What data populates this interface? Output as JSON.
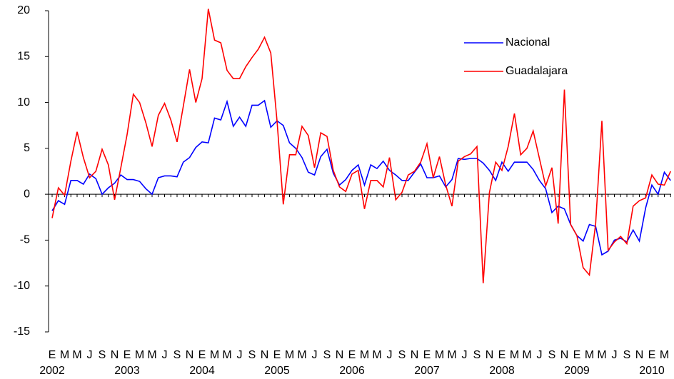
{
  "chart_data": {
    "type": "line",
    "categories": [
      "E",
      null,
      "M",
      null,
      "M",
      null,
      "J",
      null,
      "S",
      null,
      "N",
      null,
      "E",
      null,
      "M",
      null,
      "M",
      null,
      "J",
      null,
      "S",
      null,
      "N",
      null,
      "E",
      null,
      "M",
      null,
      "M",
      null,
      "J",
      null,
      "S",
      null,
      "N",
      null,
      "E",
      null,
      "M",
      null,
      "M",
      null,
      "J",
      null,
      "S",
      null,
      "N",
      null,
      "E",
      null,
      "M",
      null,
      "M",
      null,
      "J",
      null,
      "S",
      null,
      "N",
      null,
      "E",
      null,
      "M",
      null,
      "M",
      null,
      "J",
      null,
      "S",
      null,
      "N",
      null,
      "E",
      null,
      "M",
      null,
      "M",
      null,
      "J",
      null,
      "S",
      null,
      "N",
      null,
      "E",
      null,
      "M",
      null,
      "M",
      null,
      "J",
      null,
      "S",
      null,
      "N",
      null,
      "E",
      null,
      "M",
      null
    ],
    "year_labels": [
      "2002",
      "2003",
      "2004",
      "2005",
      "2006",
      "2007",
      "2008",
      "2009",
      "2010"
    ],
    "series": [
      {
        "name": "Nacional",
        "color": "#0000ff",
        "values": [
          -1.8,
          -0.7,
          -1.1,
          1.5,
          1.5,
          1.1,
          2.2,
          1.7,
          0,
          0.7,
          1.2,
          2.1,
          1.6,
          1.6,
          1.4,
          0.6,
          0,
          1.8,
          2.0,
          2.0,
          1.9,
          3.5,
          4.0,
          5.1,
          5.7,
          5.6,
          8.3,
          8.1,
          10.1,
          7.4,
          8.4,
          7.4,
          9.7,
          9.7,
          10.2,
          7.3,
          8.0,
          7.5,
          5.6,
          5.0,
          4.0,
          2.4,
          2.1,
          4.1,
          4.9,
          2.3,
          1.0,
          1.6,
          2.6,
          3.2,
          1.0,
          3.2,
          2.8,
          3.6,
          2.6,
          2.1,
          1.5,
          1.5,
          2.4,
          3.3,
          1.8,
          1.8,
          2.0,
          0.8,
          1.6,
          3.9,
          3.8,
          3.9,
          3.9,
          3.4,
          2.6,
          1.5,
          3.5,
          2.5,
          3.5,
          3.5,
          3.5,
          2.7,
          1.5,
          0.6,
          -2.0,
          -1.3,
          -1.6,
          -3.3,
          -4.5,
          -5.1,
          -3.3,
          -3.5,
          -6.6,
          -6.2,
          -5.0,
          -4.8,
          -5.2,
          -3.9,
          -5.1,
          -1.5,
          1.0,
          0,
          2.4,
          1.5
        ]
      },
      {
        "name": "Guadalajara",
        "color": "#ff0000",
        "values": [
          -2.6,
          0.7,
          -0.1,
          3.6,
          6.8,
          4.0,
          1.8,
          2.5,
          4.9,
          3.2,
          -0.6,
          2.9,
          6.5,
          10.9,
          10.0,
          7.8,
          5.2,
          8.6,
          9.9,
          8.1,
          5.7,
          9.6,
          13.6,
          10.0,
          12.6,
          20.2,
          16.8,
          16.5,
          13.5,
          12.6,
          12.6,
          13.9,
          14.9,
          15.8,
          17.1,
          15.4,
          8.0,
          -1.1,
          4.3,
          4.3,
          7.4,
          6.4,
          2.9,
          6.7,
          6.3,
          2.6,
          0.8,
          0.3,
          2.2,
          2.6,
          -1.6,
          1.5,
          1.5,
          0.8,
          4.0,
          -0.6,
          0.2,
          2.1,
          2.5,
          3.5,
          5.5,
          1.8,
          4.1,
          1.0,
          -1.3,
          3.6,
          4.1,
          4.4,
          5.2,
          -9.7,
          0.2,
          3.5,
          2.6,
          5.2,
          8.8,
          4.3,
          5.0,
          6.9,
          3.9,
          0.9,
          2.9,
          -3.2,
          11.4,
          -3.3,
          -4.5,
          -8.0,
          -8.8,
          -3.2,
          8.0,
          -6.1,
          -5.2,
          -4.6,
          -5.4,
          -1.3,
          -0.7,
          -0.4,
          2.1,
          1.1,
          1.0,
          2.5
        ]
      }
    ],
    "ylim": [
      -15,
      20
    ],
    "yticks": [
      -15,
      -10,
      -5,
      0,
      5,
      10,
      15,
      20
    ],
    "grid": false,
    "legend": "top-right"
  }
}
